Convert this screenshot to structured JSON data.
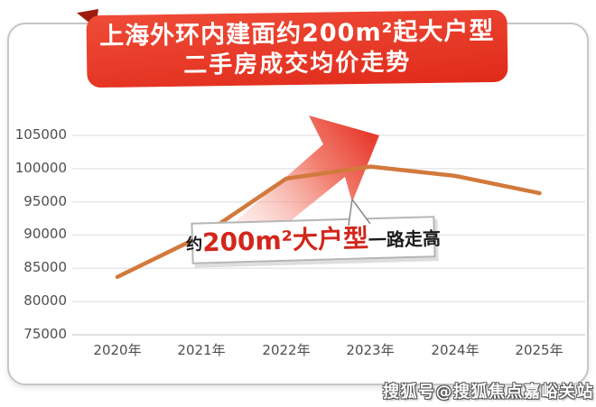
{
  "banner": {
    "line1": "上海外环内建面约200m²起大户型",
    "line2": "二手房成交均价走势",
    "bg_color": "#e63323",
    "fold_color": "#9e1a0f",
    "text_color": "#ffffff"
  },
  "chart_data": {
    "type": "line",
    "title": "上海外环内建面约200m²起大户型二手房成交均价走势",
    "x": [
      "2020年",
      "2021年",
      "2022年",
      "2023年",
      "2024年",
      "2025年"
    ],
    "series": [
      {
        "color": "#d2793c",
        "values": [
          83700,
          89900,
          98500,
          100300,
          98900,
          96300
        ]
      }
    ],
    "ylim": [
      75000,
      105000
    ],
    "yticks": [
      105000,
      100000,
      95000,
      90000,
      85000,
      80000,
      75000
    ],
    "grid": "horizontal",
    "legend": "none"
  },
  "callout": {
    "prefix": "约",
    "highlight": "200m²大户型",
    "suffix": "一路走高",
    "highlight_color": "#d3261b"
  },
  "watermark": {
    "text": "搜狐号@搜狐焦点嘉峪关站"
  },
  "icons": {
    "trend_arrow": "up-right-red-arrow"
  },
  "colors": {
    "line": "#d2793c",
    "arrow_red": "#e63325",
    "banner_red": "#e63323",
    "gridline": "#e7e7e7"
  }
}
